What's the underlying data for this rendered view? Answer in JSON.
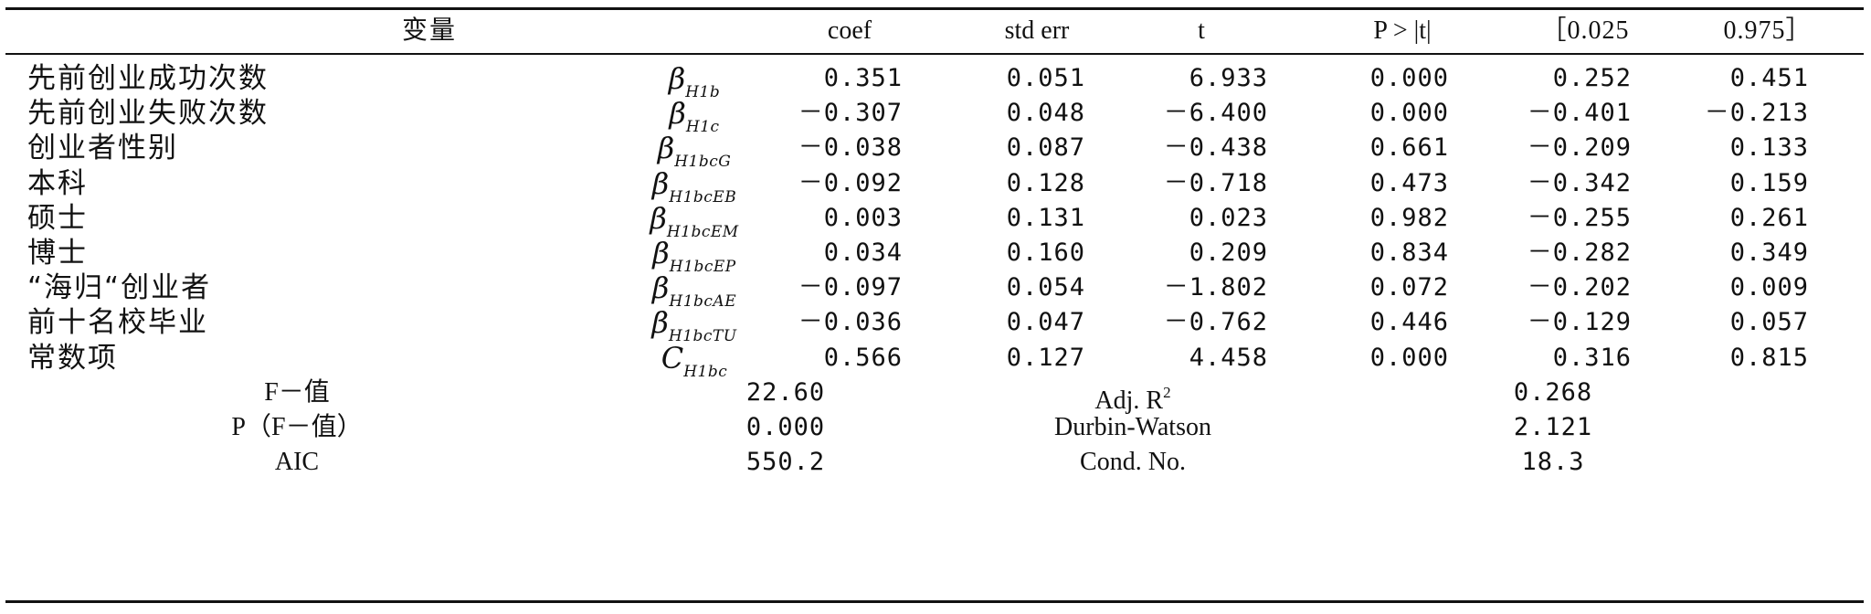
{
  "header": {
    "variable": "变量",
    "coef": "coef",
    "std_err": "std err",
    "t": "t",
    "p": "P > |t|",
    "ci_low": "［0.025",
    "ci_high": "0.975］"
  },
  "rows": [
    {
      "variable": "先前创业成功次数",
      "sym_base": "β",
      "sym_sub": "H1b",
      "coef": "0.351",
      "std_err": "0.051",
      "t": "6.933",
      "p": "0.000",
      "ci_low": "0.252",
      "ci_high": "0.451"
    },
    {
      "variable": "先前创业失败次数",
      "sym_base": "β",
      "sym_sub": "H1c",
      "coef": "－0.307",
      "std_err": "0.048",
      "t": "－6.400",
      "p": "0.000",
      "ci_low": "－0.401",
      "ci_high": "－0.213"
    },
    {
      "variable": "创业者性别",
      "sym_base": "β",
      "sym_sub": "H1bcG",
      "coef": "－0.038",
      "std_err": "0.087",
      "t": "－0.438",
      "p": "0.661",
      "ci_low": "－0.209",
      "ci_high": "0.133"
    },
    {
      "variable": "本科",
      "sym_base": "β",
      "sym_sub": "H1bcEB",
      "coef": "－0.092",
      "std_err": "0.128",
      "t": "－0.718",
      "p": "0.473",
      "ci_low": "－0.342",
      "ci_high": "0.159"
    },
    {
      "variable": "硕士",
      "sym_base": "β",
      "sym_sub": "H1bcEM",
      "coef": "0.003",
      "std_err": "0.131",
      "t": "0.023",
      "p": "0.982",
      "ci_low": "－0.255",
      "ci_high": "0.261"
    },
    {
      "variable": "博士",
      "sym_base": "β",
      "sym_sub": "H1bcEP",
      "coef": "0.034",
      "std_err": "0.160",
      "t": "0.209",
      "p": "0.834",
      "ci_low": "－0.282",
      "ci_high": "0.349"
    },
    {
      "variable": "“海归“创业者",
      "sym_base": "β",
      "sym_sub": "H1bcAE",
      "coef": "－0.097",
      "std_err": "0.054",
      "t": "－1.802",
      "p": "0.072",
      "ci_low": "－0.202",
      "ci_high": "0.009"
    },
    {
      "variable": "前十名校毕业",
      "sym_base": "β",
      "sym_sub": "H1bcTU",
      "coef": "－0.036",
      "std_err": "0.047",
      "t": "－0.762",
      "p": "0.446",
      "ci_low": "－0.129",
      "ci_high": "0.057"
    },
    {
      "variable": "常数项",
      "sym_base": "C",
      "sym_sub": "H1bc",
      "coef": "0.566",
      "std_err": "0.127",
      "t": "4.458",
      "p": "0.000",
      "ci_low": "0.316",
      "ci_high": "0.815"
    }
  ],
  "summary": [
    {
      "label": "F－值",
      "value": "22.60",
      "label2": "Adj. R",
      "label2_sup": "2",
      "value2": "0.268"
    },
    {
      "label": "P（F－值）",
      "value": "0.000",
      "label2": "Durbin-Watson",
      "label2_sup": "",
      "value2": "2.121"
    },
    {
      "label": "AIC",
      "value": "550.2",
      "label2": "Cond. No.",
      "label2_sup": "",
      "value2": "18.3"
    }
  ]
}
